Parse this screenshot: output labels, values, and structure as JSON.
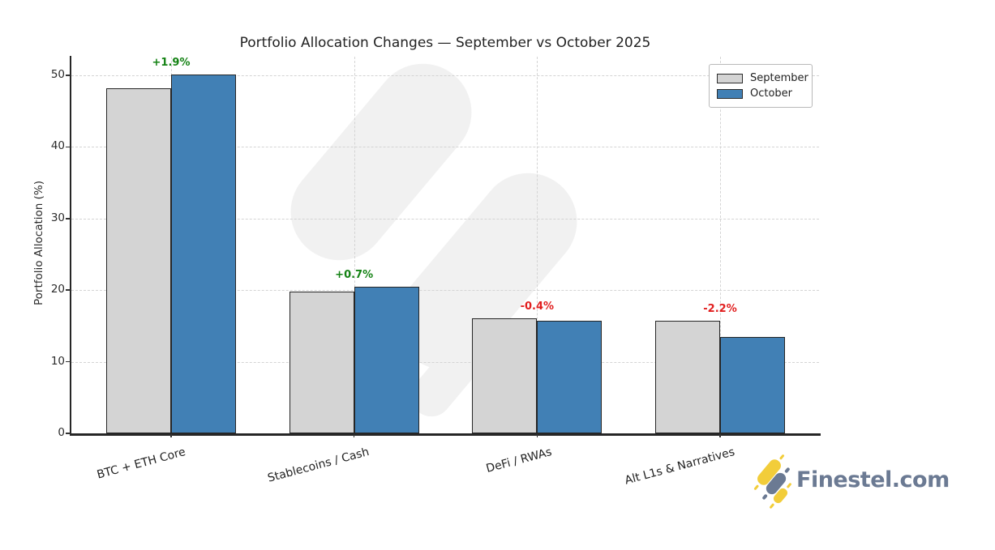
{
  "chart_data": {
    "type": "bar",
    "title": "Portfolio Allocation Changes — September vs October 2025",
    "ylabel": "Portfolio Allocation (%)",
    "xlabel": "",
    "categories": [
      "BTC + ETH Core",
      "Stablecoins / Cash",
      "DeFi / RWAs",
      "Alt L1s & Narratives"
    ],
    "series": [
      {
        "name": "September",
        "values": [
          48.2,
          19.8,
          16.1,
          15.7
        ],
        "color": "#d4d4d4"
      },
      {
        "name": "October",
        "values": [
          50.1,
          20.5,
          15.7,
          13.5
        ],
        "color": "#4180b5"
      }
    ],
    "change_labels": [
      {
        "text": "+1.9%",
        "color": "#148214"
      },
      {
        "text": "+0.7%",
        "color": "#148214"
      },
      {
        "text": "-0.4%",
        "color": "#e11e1e"
      },
      {
        "text": "-2.2%",
        "color": "#e11e1e"
      }
    ],
    "yticks": [
      0,
      10,
      20,
      30,
      40,
      50
    ],
    "ylim": [
      0,
      52.6
    ],
    "grid": true,
    "legend_position": "upper-right",
    "bar_edge_color": "#262626"
  },
  "branding": {
    "logo_text": "Finestel.com",
    "logo_text_color": "#6b7a93",
    "logo_candle_yellow": "#f2cd3a",
    "logo_candle_gray": "#6b7a93"
  }
}
